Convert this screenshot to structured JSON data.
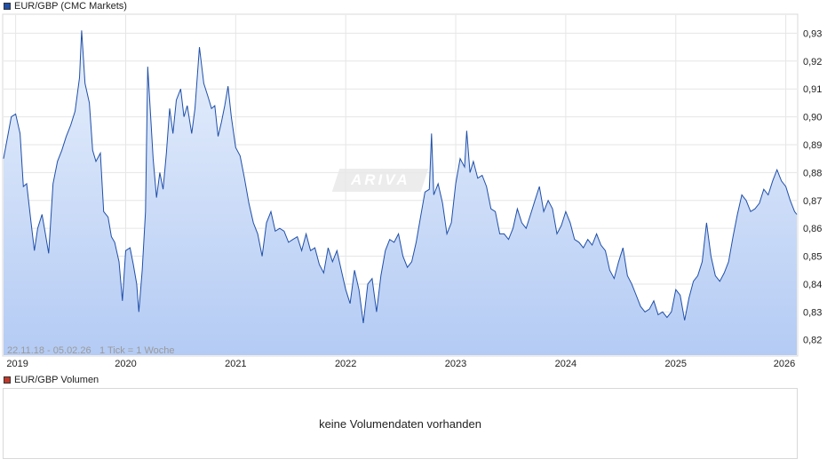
{
  "legend": {
    "price_label": "EUR/GBP (CMC Markets)",
    "price_color": "#1f4fa8",
    "volume_label": "EUR/GBP Volumen",
    "volume_color": "#c0392b"
  },
  "watermark_text": "ARIVA",
  "range_text": "22.11.18 - 05.02.26",
  "tick_text": "1 Tick = 1 Woche",
  "volume_message": "keine Volumendaten vorhanden",
  "chart_data": {
    "type": "area",
    "series": [
      {
        "name": "EUR/GBP (CMC Markets)",
        "values": [
          [
            2018.89,
            0.885
          ],
          [
            2018.96,
            0.9
          ],
          [
            2019.0,
            0.901
          ],
          [
            2019.04,
            0.894
          ],
          [
            2019.07,
            0.875
          ],
          [
            2019.1,
            0.876
          ],
          [
            2019.14,
            0.862
          ],
          [
            2019.17,
            0.852
          ],
          [
            2019.2,
            0.86
          ],
          [
            2019.24,
            0.865
          ],
          [
            2019.27,
            0.858
          ],
          [
            2019.3,
            0.851
          ],
          [
            2019.34,
            0.876
          ],
          [
            2019.38,
            0.884
          ],
          [
            2019.42,
            0.888
          ],
          [
            2019.46,
            0.893
          ],
          [
            2019.5,
            0.897
          ],
          [
            2019.54,
            0.902
          ],
          [
            2019.58,
            0.914
          ],
          [
            2019.6,
            0.931
          ],
          [
            2019.63,
            0.912
          ],
          [
            2019.67,
            0.905
          ],
          [
            2019.7,
            0.888
          ],
          [
            2019.73,
            0.884
          ],
          [
            2019.77,
            0.887
          ],
          [
            2019.8,
            0.866
          ],
          [
            2019.84,
            0.864
          ],
          [
            2019.87,
            0.857
          ],
          [
            2019.9,
            0.855
          ],
          [
            2019.94,
            0.848
          ],
          [
            2019.97,
            0.834
          ],
          [
            2020.0,
            0.852
          ],
          [
            2020.04,
            0.853
          ],
          [
            2020.07,
            0.847
          ],
          [
            2020.1,
            0.84
          ],
          [
            2020.12,
            0.83
          ],
          [
            2020.15,
            0.845
          ],
          [
            2020.18,
            0.866
          ],
          [
            2020.2,
            0.918
          ],
          [
            2020.22,
            0.905
          ],
          [
            2020.25,
            0.885
          ],
          [
            2020.28,
            0.871
          ],
          [
            2020.31,
            0.88
          ],
          [
            2020.34,
            0.874
          ],
          [
            2020.37,
            0.887
          ],
          [
            2020.4,
            0.903
          ],
          [
            2020.43,
            0.894
          ],
          [
            2020.46,
            0.906
          ],
          [
            2020.5,
            0.91
          ],
          [
            2020.53,
            0.9
          ],
          [
            2020.56,
            0.904
          ],
          [
            2020.6,
            0.894
          ],
          [
            2020.63,
            0.903
          ],
          [
            2020.67,
            0.925
          ],
          [
            2020.71,
            0.912
          ],
          [
            2020.75,
            0.907
          ],
          [
            2020.78,
            0.903
          ],
          [
            2020.81,
            0.904
          ],
          [
            2020.84,
            0.893
          ],
          [
            2020.87,
            0.898
          ],
          [
            2020.9,
            0.904
          ],
          [
            2020.93,
            0.911
          ],
          [
            2020.96,
            0.9
          ],
          [
            2021.0,
            0.889
          ],
          [
            2021.04,
            0.886
          ],
          [
            2021.08,
            0.878
          ],
          [
            2021.12,
            0.869
          ],
          [
            2021.16,
            0.862
          ],
          [
            2021.2,
            0.858
          ],
          [
            2021.24,
            0.85
          ],
          [
            2021.28,
            0.862
          ],
          [
            2021.32,
            0.866
          ],
          [
            2021.36,
            0.859
          ],
          [
            2021.4,
            0.86
          ],
          [
            2021.44,
            0.859
          ],
          [
            2021.48,
            0.855
          ],
          [
            2021.52,
            0.856
          ],
          [
            2021.56,
            0.857
          ],
          [
            2021.6,
            0.852
          ],
          [
            2021.64,
            0.858
          ],
          [
            2021.68,
            0.852
          ],
          [
            2021.72,
            0.853
          ],
          [
            2021.76,
            0.847
          ],
          [
            2021.8,
            0.844
          ],
          [
            2021.84,
            0.853
          ],
          [
            2021.88,
            0.848
          ],
          [
            2021.92,
            0.852
          ],
          [
            2021.96,
            0.845
          ],
          [
            2022.0,
            0.838
          ],
          [
            2022.04,
            0.833
          ],
          [
            2022.08,
            0.845
          ],
          [
            2022.12,
            0.838
          ],
          [
            2022.16,
            0.826
          ],
          [
            2022.2,
            0.84
          ],
          [
            2022.24,
            0.842
          ],
          [
            2022.28,
            0.83
          ],
          [
            2022.32,
            0.843
          ],
          [
            2022.36,
            0.852
          ],
          [
            2022.4,
            0.856
          ],
          [
            2022.44,
            0.855
          ],
          [
            2022.48,
            0.858
          ],
          [
            2022.52,
            0.85
          ],
          [
            2022.56,
            0.846
          ],
          [
            2022.6,
            0.848
          ],
          [
            2022.64,
            0.855
          ],
          [
            2022.68,
            0.864
          ],
          [
            2022.72,
            0.873
          ],
          [
            2022.76,
            0.874
          ],
          [
            2022.78,
            0.894
          ],
          [
            2022.8,
            0.872
          ],
          [
            2022.84,
            0.876
          ],
          [
            2022.88,
            0.869
          ],
          [
            2022.92,
            0.858
          ],
          [
            2022.96,
            0.862
          ],
          [
            2023.0,
            0.876
          ],
          [
            2023.04,
            0.885
          ],
          [
            2023.08,
            0.882
          ],
          [
            2023.1,
            0.895
          ],
          [
            2023.13,
            0.88
          ],
          [
            2023.16,
            0.884
          ],
          [
            2023.2,
            0.878
          ],
          [
            2023.24,
            0.879
          ],
          [
            2023.28,
            0.875
          ],
          [
            2023.32,
            0.867
          ],
          [
            2023.36,
            0.866
          ],
          [
            2023.4,
            0.858
          ],
          [
            2023.44,
            0.858
          ],
          [
            2023.48,
            0.856
          ],
          [
            2023.52,
            0.86
          ],
          [
            2023.56,
            0.867
          ],
          [
            2023.6,
            0.862
          ],
          [
            2023.64,
            0.86
          ],
          [
            2023.68,
            0.865
          ],
          [
            2023.72,
            0.87
          ],
          [
            2023.76,
            0.875
          ],
          [
            2023.8,
            0.866
          ],
          [
            2023.84,
            0.87
          ],
          [
            2023.88,
            0.867
          ],
          [
            2023.92,
            0.858
          ],
          [
            2023.96,
            0.861
          ],
          [
            2024.0,
            0.866
          ],
          [
            2024.04,
            0.862
          ],
          [
            2024.08,
            0.856
          ],
          [
            2024.12,
            0.855
          ],
          [
            2024.16,
            0.853
          ],
          [
            2024.2,
            0.856
          ],
          [
            2024.24,
            0.854
          ],
          [
            2024.28,
            0.858
          ],
          [
            2024.32,
            0.854
          ],
          [
            2024.36,
            0.852
          ],
          [
            2024.4,
            0.845
          ],
          [
            2024.44,
            0.842
          ],
          [
            2024.48,
            0.848
          ],
          [
            2024.52,
            0.853
          ],
          [
            2024.56,
            0.843
          ],
          [
            2024.6,
            0.84
          ],
          [
            2024.64,
            0.836
          ],
          [
            2024.68,
            0.832
          ],
          [
            2024.72,
            0.83
          ],
          [
            2024.76,
            0.831
          ],
          [
            2024.8,
            0.834
          ],
          [
            2024.84,
            0.829
          ],
          [
            2024.88,
            0.83
          ],
          [
            2024.92,
            0.828
          ],
          [
            2024.96,
            0.83
          ],
          [
            2025.0,
            0.838
          ],
          [
            2025.04,
            0.836
          ],
          [
            2025.08,
            0.827
          ],
          [
            2025.12,
            0.835
          ],
          [
            2025.16,
            0.841
          ],
          [
            2025.2,
            0.843
          ],
          [
            2025.24,
            0.848
          ],
          [
            2025.28,
            0.862
          ],
          [
            2025.32,
            0.85
          ],
          [
            2025.36,
            0.843
          ],
          [
            2025.4,
            0.841
          ],
          [
            2025.44,
            0.844
          ],
          [
            2025.48,
            0.848
          ],
          [
            2025.52,
            0.857
          ],
          [
            2025.56,
            0.865
          ],
          [
            2025.6,
            0.872
          ],
          [
            2025.64,
            0.87
          ],
          [
            2025.68,
            0.866
          ],
          [
            2025.72,
            0.867
          ],
          [
            2025.76,
            0.869
          ],
          [
            2025.8,
            0.874
          ],
          [
            2025.84,
            0.872
          ],
          [
            2025.88,
            0.877
          ],
          [
            2025.92,
            0.881
          ],
          [
            2025.96,
            0.877
          ],
          [
            2026.0,
            0.875
          ],
          [
            2026.04,
            0.87
          ],
          [
            2026.08,
            0.866
          ],
          [
            2026.1,
            0.865
          ]
        ]
      }
    ],
    "x_ticks": [
      "2019",
      "2020",
      "2021",
      "2022",
      "2023",
      "2024",
      "2025",
      "2026"
    ],
    "x_tick_values": [
      2019,
      2020,
      2021,
      2022,
      2023,
      2024,
      2025,
      2026
    ],
    "y_ticks": [
      "0,82",
      "0,83",
      "0,84",
      "0,85",
      "0,86",
      "0,87",
      "0,88",
      "0,89",
      "0,90",
      "0,91",
      "0,92",
      "0,93"
    ],
    "y_tick_values": [
      0.82,
      0.83,
      0.84,
      0.85,
      0.86,
      0.87,
      0.88,
      0.89,
      0.9,
      0.91,
      0.92,
      0.93
    ],
    "xlim": [
      2018.89,
      2026.1
    ],
    "ylim": [
      0.8145,
      0.9365
    ],
    "grid": true,
    "legend_position": "top-left",
    "line_color": "#1f4fa8",
    "fill_top_color": "#e8f0fc",
    "fill_bottom_color": "#b4cbf4"
  }
}
